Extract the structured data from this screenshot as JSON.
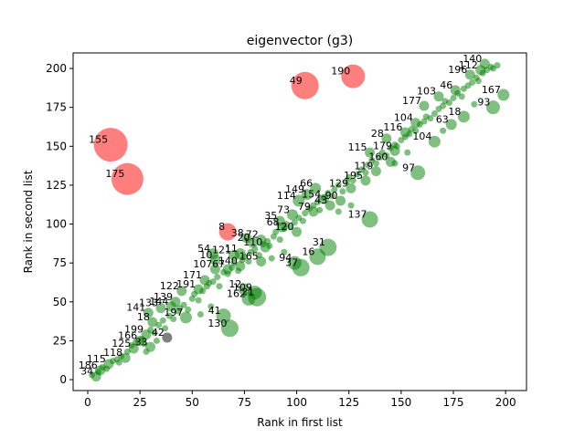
{
  "chart_data": {
    "type": "scatter",
    "title": "eigenvector (g3)",
    "xlabel": "Rank in first list",
    "ylabel": "Rank in second list",
    "xlim": [
      -7,
      210
    ],
    "ylim": [
      -7,
      210
    ],
    "xticks": [
      0,
      25,
      50,
      75,
      100,
      125,
      150,
      175,
      200
    ],
    "yticks": [
      0,
      25,
      50,
      75,
      100,
      125,
      150,
      175,
      200
    ],
    "grid": false,
    "colors": {
      "large_change": "#ff0000",
      "small_change": "#008000",
      "gray": "#000000"
    },
    "points": [
      {
        "x": 11,
        "y": 151,
        "size": 34,
        "group": "large_change",
        "label": "155"
      },
      {
        "x": 19,
        "y": 129,
        "size": 32,
        "group": "large_change",
        "label": "175"
      },
      {
        "x": 104,
        "y": 189,
        "size": 27,
        "group": "large_change",
        "label": "49"
      },
      {
        "x": 127,
        "y": 195,
        "size": 23,
        "group": "large_change",
        "label": "190"
      },
      {
        "x": 67,
        "y": 95,
        "size": 16,
        "group": "large_change",
        "label": "8"
      },
      {
        "x": 135,
        "y": 103,
        "size": 15,
        "group": "small_change",
        "label": "137"
      },
      {
        "x": 115,
        "y": 85,
        "size": 16,
        "group": "small_change",
        "label": "31"
      },
      {
        "x": 110,
        "y": 79,
        "size": 15,
        "group": "small_change",
        "label": "16"
      },
      {
        "x": 102,
        "y": 72,
        "size": 16,
        "group": "small_change",
        "label": "37"
      },
      {
        "x": 99,
        "y": 75,
        "size": 12,
        "group": "small_change",
        "label": "94"
      },
      {
        "x": 68,
        "y": 33,
        "size": 16,
        "group": "small_change",
        "label": "130"
      },
      {
        "x": 65,
        "y": 41,
        "size": 13,
        "group": "small_change",
        "label": "41"
      },
      {
        "x": 81,
        "y": 53,
        "size": 17,
        "group": "small_change",
        "label": "21"
      },
      {
        "x": 77,
        "y": 52,
        "size": 12,
        "group": "small_change",
        "label": "162"
      },
      {
        "x": 80,
        "y": 56,
        "size": 12,
        "group": "small_change",
        "label": "109"
      },
      {
        "x": 75,
        "y": 58,
        "size": 10,
        "group": "small_change",
        "label": "12"
      },
      {
        "x": 158,
        "y": 133,
        "size": 13,
        "group": "small_change",
        "label": "97"
      },
      {
        "x": 194,
        "y": 175,
        "size": 12,
        "group": "small_change",
        "label": "93"
      },
      {
        "x": 199,
        "y": 183,
        "size": 10,
        "group": "small_change",
        "label": "167"
      },
      {
        "x": 180,
        "y": 169,
        "size": 10,
        "group": "small_change",
        "label": "18"
      },
      {
        "x": 166,
        "y": 153,
        "size": 10,
        "group": "small_change",
        "label": "104"
      },
      {
        "x": 174,
        "y": 164,
        "size": 9,
        "group": "small_change",
        "label": "63"
      },
      {
        "x": 47,
        "y": 40,
        "size": 10,
        "group": "small_change",
        "label": "197"
      },
      {
        "x": 38,
        "y": 27,
        "size": 8,
        "group": "gray",
        "label": "42"
      },
      {
        "x": 30,
        "y": 21,
        "size": 8,
        "group": "small_change",
        "label": "33"
      },
      {
        "x": 60,
        "y": 81,
        "size": 9,
        "group": "small_change",
        "label": "54"
      },
      {
        "x": 61,
        "y": 77,
        "size": 9,
        "group": "small_change",
        "label": "10"
      },
      {
        "x": 70,
        "y": 80,
        "size": 9,
        "group": "small_change",
        "label": "121"
      },
      {
        "x": 73,
        "y": 81,
        "size": 9,
        "group": "small_change",
        "label": "11"
      },
      {
        "x": 83,
        "y": 76,
        "size": 8,
        "group": "small_change",
        "label": "165"
      },
      {
        "x": 85,
        "y": 85,
        "size": 8,
        "group": "small_change",
        "label": "110"
      },
      {
        "x": 79,
        "y": 88,
        "size": 8,
        "group": "small_change",
        "label": "20"
      },
      {
        "x": 76,
        "y": 91,
        "size": 8,
        "group": "small_change",
        "label": "38"
      },
      {
        "x": 83,
        "y": 90,
        "size": 8,
        "group": "small_change",
        "label": "72"
      },
      {
        "x": 92,
        "y": 102,
        "size": 8,
        "group": "small_change",
        "label": "35"
      },
      {
        "x": 93,
        "y": 98,
        "size": 8,
        "group": "small_change",
        "label": "68"
      },
      {
        "x": 100,
        "y": 95,
        "size": 8,
        "group": "small_change",
        "label": "120"
      },
      {
        "x": 98,
        "y": 106,
        "size": 9,
        "group": "small_change",
        "label": "73"
      },
      {
        "x": 108,
        "y": 108,
        "size": 8,
        "group": "small_change",
        "label": "79"
      },
      {
        "x": 101,
        "y": 115,
        "size": 10,
        "group": "small_change",
        "label": "114"
      },
      {
        "x": 105,
        "y": 119,
        "size": 9,
        "group": "small_change",
        "label": "149"
      },
      {
        "x": 109,
        "y": 123,
        "size": 9,
        "group": "small_change",
        "label": "66"
      },
      {
        "x": 113,
        "y": 116,
        "size": 8,
        "group": "small_change",
        "label": "154"
      },
      {
        "x": 116,
        "y": 112,
        "size": 8,
        "group": "small_change",
        "label": "43"
      },
      {
        "x": 121,
        "y": 115,
        "size": 8,
        "group": "small_change",
        "label": "90"
      },
      {
        "x": 126,
        "y": 123,
        "size": 8,
        "group": "small_change",
        "label": "129"
      },
      {
        "x": 133,
        "y": 128,
        "size": 8,
        "group": "small_change",
        "label": "195"
      },
      {
        "x": 138,
        "y": 134,
        "size": 8,
        "group": "small_change",
        "label": "119"
      },
      {
        "x": 145,
        "y": 140,
        "size": 8,
        "group": "small_change",
        "label": "160"
      },
      {
        "x": 147,
        "y": 147,
        "size": 8,
        "group": "small_change",
        "label": "179"
      },
      {
        "x": 152,
        "y": 159,
        "size": 8,
        "group": "small_change",
        "label": "116"
      },
      {
        "x": 157,
        "y": 165,
        "size": 8,
        "group": "small_change",
        "label": "104b"
      },
      {
        "x": 161,
        "y": 176,
        "size": 8,
        "group": "small_change",
        "label": "177"
      },
      {
        "x": 168,
        "y": 182,
        "size": 8,
        "group": "small_change",
        "label": "103"
      },
      {
        "x": 176,
        "y": 186,
        "size": 8,
        "group": "small_change",
        "label": "46"
      },
      {
        "x": 183,
        "y": 196,
        "size": 8,
        "group": "small_change",
        "label": "196"
      },
      {
        "x": 190,
        "y": 203,
        "size": 8,
        "group": "small_change",
        "label": "140"
      },
      {
        "x": 45,
        "y": 57,
        "size": 8,
        "group": "small_change",
        "label": "122"
      },
      {
        "x": 53,
        "y": 58,
        "size": 8,
        "group": "small_change",
        "label": "191"
      },
      {
        "x": 42,
        "y": 50,
        "size": 8,
        "group": "small_change",
        "label": "139"
      },
      {
        "x": 40,
        "y": 47,
        "size": 8,
        "group": "small_change",
        "label": "144"
      },
      {
        "x": 35,
        "y": 46,
        "size": 8,
        "group": "small_change",
        "label": "133"
      },
      {
        "x": 29,
        "y": 43,
        "size": 8,
        "group": "small_change",
        "label": "141"
      },
      {
        "x": 31,
        "y": 37,
        "size": 8,
        "group": "small_change",
        "label": "18"
      },
      {
        "x": 28,
        "y": 29,
        "size": 8,
        "group": "small_change",
        "label": "199"
      },
      {
        "x": 25,
        "y": 25,
        "size": 8,
        "group": "small_change",
        "label": "166"
      },
      {
        "x": 22,
        "y": 20,
        "size": 8,
        "group": "small_change",
        "label": "125"
      },
      {
        "x": 18,
        "y": 14,
        "size": 8,
        "group": "small_change",
        "label": "118"
      },
      {
        "x": 10,
        "y": 10,
        "size": 8,
        "group": "small_change",
        "label": "115"
      },
      {
        "x": 6,
        "y": 6,
        "size": 8,
        "group": "small_change",
        "label": "186"
      },
      {
        "x": 4,
        "y": 2,
        "size": 8,
        "group": "small_change",
        "label": "34"
      },
      {
        "x": 56,
        "y": 64,
        "size": 8,
        "group": "small_change",
        "label": "171"
      },
      {
        "x": 61,
        "y": 71,
        "size": 8,
        "group": "small_change",
        "label": "107"
      },
      {
        "x": 67,
        "y": 71,
        "size": 8,
        "group": "small_change",
        "label": "67"
      },
      {
        "x": 73,
        "y": 73,
        "size": 8,
        "group": "small_change",
        "label": "140b"
      },
      {
        "x": 143,
        "y": 155,
        "size": 8,
        "group": "small_change",
        "label": "28"
      },
      {
        "x": 135,
        "y": 146,
        "size": 8,
        "group": "small_change",
        "label": "115b"
      },
      {
        "x": 188,
        "y": 199,
        "size": 8,
        "group": "small_change",
        "label": "112"
      }
    ],
    "diagonal_cloud": [
      [
        2,
        3
      ],
      [
        5,
        5
      ],
      [
        7,
        8
      ],
      [
        9,
        7
      ],
      [
        12,
        12
      ],
      [
        14,
        13
      ],
      [
        16,
        15
      ],
      [
        19,
        18
      ],
      [
        21,
        22
      ],
      [
        23,
        24
      ],
      [
        26,
        26
      ],
      [
        27,
        23
      ],
      [
        30,
        32
      ],
      [
        32,
        30
      ],
      [
        34,
        35
      ],
      [
        36,
        38
      ],
      [
        37,
        33
      ],
      [
        39,
        41
      ],
      [
        41,
        39
      ],
      [
        43,
        44
      ],
      [
        44,
        46
      ],
      [
        46,
        48
      ],
      [
        48,
        45
      ],
      [
        50,
        52
      ],
      [
        51,
        55
      ],
      [
        53,
        51
      ],
      [
        55,
        57
      ],
      [
        57,
        60
      ],
      [
        58,
        62
      ],
      [
        60,
        63
      ],
      [
        62,
        66
      ],
      [
        63,
        60
      ],
      [
        65,
        69
      ],
      [
        67,
        68
      ],
      [
        69,
        72
      ],
      [
        70,
        75
      ],
      [
        72,
        70
      ],
      [
        74,
        77
      ],
      [
        75,
        79
      ],
      [
        77,
        76
      ],
      [
        78,
        82
      ],
      [
        80,
        84
      ],
      [
        82,
        80
      ],
      [
        84,
        87
      ],
      [
        86,
        89
      ],
      [
        87,
        86
      ],
      [
        89,
        92
      ],
      [
        90,
        95
      ],
      [
        92,
        90
      ],
      [
        94,
        97
      ],
      [
        95,
        100
      ],
      [
        97,
        98
      ],
      [
        99,
        101
      ],
      [
        101,
        104
      ],
      [
        103,
        102
      ],
      [
        104,
        107
      ],
      [
        106,
        110
      ],
      [
        108,
        112
      ],
      [
        110,
        114
      ],
      [
        111,
        109
      ],
      [
        113,
        117
      ],
      [
        115,
        120
      ],
      [
        117,
        118
      ],
      [
        118,
        122
      ],
      [
        120,
        125
      ],
      [
        122,
        121
      ],
      [
        124,
        127
      ],
      [
        125,
        130
      ],
      [
        127,
        128
      ],
      [
        129,
        132
      ],
      [
        131,
        135
      ],
      [
        133,
        133
      ],
      [
        134,
        138
      ],
      [
        136,
        141
      ],
      [
        138,
        139
      ],
      [
        140,
        143
      ],
      [
        141,
        146
      ],
      [
        143,
        144
      ],
      [
        145,
        149
      ],
      [
        147,
        151
      ],
      [
        148,
        150
      ],
      [
        150,
        154
      ],
      [
        152,
        156
      ],
      [
        154,
        158
      ],
      [
        155,
        161
      ],
      [
        157,
        160
      ],
      [
        159,
        164
      ],
      [
        161,
        166
      ],
      [
        162,
        169
      ],
      [
        164,
        168
      ],
      [
        166,
        171
      ],
      [
        168,
        174
      ],
      [
        170,
        176
      ],
      [
        171,
        179
      ],
      [
        173,
        178
      ],
      [
        175,
        181
      ],
      [
        177,
        184
      ],
      [
        179,
        182
      ],
      [
        180,
        187
      ],
      [
        182,
        189
      ],
      [
        184,
        191
      ],
      [
        186,
        194
      ],
      [
        187,
        192
      ],
      [
        189,
        197
      ],
      [
        191,
        199
      ],
      [
        193,
        201
      ],
      [
        194,
        200
      ],
      [
        196,
        202
      ],
      [
        153,
        146
      ],
      [
        147,
        139
      ],
      [
        126,
        112
      ],
      [
        120,
        108
      ],
      [
        94,
        82
      ],
      [
        88,
        78
      ],
      [
        59,
        47
      ],
      [
        54,
        42
      ],
      [
        33,
        25
      ],
      [
        28,
        18
      ],
      [
        15,
        11
      ],
      [
        170,
        160
      ],
      [
        185,
        177
      ]
    ]
  }
}
